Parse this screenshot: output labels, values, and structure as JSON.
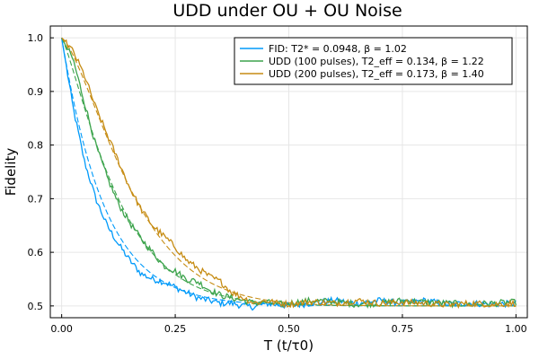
{
  "chart_data": {
    "type": "line",
    "title": "UDD under OU + OU Noise",
    "xlabel": "T (t/τ0)",
    "ylabel": "Fidelity",
    "xlim": [
      -0.025,
      1.025
    ],
    "ylim": [
      0.478,
      1.022
    ],
    "xticks": [
      0.0,
      0.25,
      0.5,
      0.75,
      1.0
    ],
    "xtick_labels": [
      "0.00",
      "0.25",
      "0.50",
      "0.75",
      "1.00"
    ],
    "yticks": [
      0.5,
      0.6,
      0.7,
      0.8,
      0.9,
      1.0
    ],
    "ytick_labels": [
      "0.5",
      "0.6",
      "0.7",
      "0.8",
      "0.9",
      "1.0"
    ],
    "grid": true,
    "legend_position": "top-right",
    "series": [
      {
        "name": "FID: T2* = 0.0948, β = 1.02",
        "color": "#009AFA",
        "x": [
          0,
          0.025,
          0.05,
          0.075,
          0.1,
          0.125,
          0.15,
          0.175,
          0.2,
          0.225,
          0.25,
          0.275,
          0.3,
          0.325,
          0.35,
          0.375,
          0.4,
          0.425,
          0.45,
          0.475,
          0.5,
          0.55,
          0.6,
          0.65,
          0.7,
          0.75,
          0.8,
          0.85,
          0.9,
          0.95,
          1.0
        ],
        "y": [
          1.0,
          0.87,
          0.77,
          0.7,
          0.65,
          0.615,
          0.585,
          0.56,
          0.55,
          0.545,
          0.535,
          0.525,
          0.515,
          0.51,
          0.505,
          0.505,
          0.5,
          0.498,
          0.505,
          0.502,
          0.5,
          0.505,
          0.51,
          0.505,
          0.51,
          0.505,
          0.51,
          0.503,
          0.505,
          0.503,
          0.505
        ]
      },
      {
        "name": "UDD (100 pulses), T2_eff = 0.134, β = 1.22",
        "color": "#3DA44D",
        "x": [
          0,
          0.025,
          0.05,
          0.075,
          0.1,
          0.125,
          0.15,
          0.175,
          0.2,
          0.225,
          0.25,
          0.275,
          0.3,
          0.325,
          0.35,
          0.375,
          0.4,
          0.425,
          0.45,
          0.475,
          0.5,
          0.55,
          0.6,
          0.65,
          0.7,
          0.75,
          0.8,
          0.85,
          0.9,
          0.95,
          1.0
        ],
        "y": [
          1.0,
          0.96,
          0.88,
          0.8,
          0.74,
          0.69,
          0.655,
          0.625,
          0.6,
          0.575,
          0.565,
          0.55,
          0.545,
          0.53,
          0.52,
          0.515,
          0.51,
          0.505,
          0.507,
          0.503,
          0.505,
          0.51,
          0.508,
          0.503,
          0.505,
          0.51,
          0.507,
          0.505,
          0.503,
          0.505,
          0.507
        ]
      },
      {
        "name": "UDD (200 pulses), T2_eff = 0.173, β = 1.40",
        "color": "#C68C13",
        "x": [
          0,
          0.025,
          0.05,
          0.075,
          0.1,
          0.125,
          0.15,
          0.175,
          0.2,
          0.225,
          0.25,
          0.275,
          0.3,
          0.325,
          0.35,
          0.375,
          0.4,
          0.425,
          0.45,
          0.475,
          0.5,
          0.55,
          0.6,
          0.65,
          0.7,
          0.75,
          0.8,
          0.85,
          0.9,
          0.95,
          1.0
        ],
        "y": [
          1.0,
          0.975,
          0.93,
          0.87,
          0.82,
          0.77,
          0.72,
          0.68,
          0.65,
          0.63,
          0.61,
          0.585,
          0.57,
          0.555,
          0.545,
          0.525,
          0.515,
          0.505,
          0.51,
          0.505,
          0.503,
          0.508,
          0.505,
          0.51,
          0.505,
          0.507,
          0.505,
          0.502,
          0.505,
          0.503,
          0.505
        ]
      }
    ],
    "fits": [
      {
        "color": "#009AFA",
        "T2": 0.0948,
        "beta": 1.02
      },
      {
        "color": "#3DA44D",
        "T2": 0.134,
        "beta": 1.22
      },
      {
        "color": "#C68C13",
        "T2": 0.173,
        "beta": 1.4
      }
    ]
  }
}
